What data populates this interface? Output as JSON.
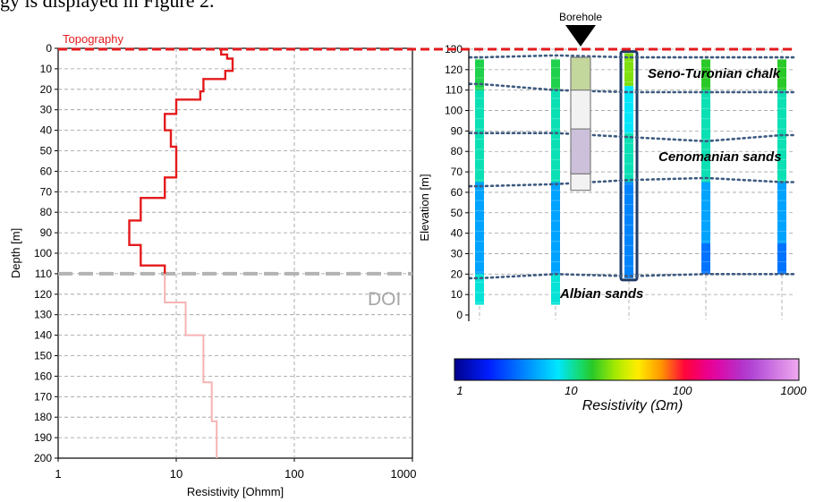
{
  "caption_fragment": "gy is displayed in Figure 2.",
  "colors": {
    "profile_line": "#e41a1c",
    "profile_below_doi": "#f6b3b3",
    "topography_line": "#e41a1c",
    "doi_line": "#b3b3b3",
    "borehole_outline": "#1f3a66",
    "layer_boundary": "#3d5a80"
  },
  "chart_data": [
    {
      "type": "line",
      "title": "",
      "xlabel": "Resistivity [Ohmm]",
      "ylabel": "Depth [m]",
      "xscale": "log",
      "xlim": [
        1,
        1000
      ],
      "ylim": [
        0,
        200
      ],
      "y_inverted": true,
      "grid": true,
      "x_ticks": [
        "1",
        "10",
        "100",
        "1000"
      ],
      "y_ticks": [
        "0",
        "10",
        "20",
        "30",
        "40",
        "50",
        "60",
        "70",
        "80",
        "90",
        "100",
        "110",
        "120",
        "130",
        "140",
        "150",
        "160",
        "170",
        "180",
        "190",
        "200"
      ],
      "annotations": [
        {
          "text": "Topography",
          "depth": 0
        },
        {
          "text": "DOI",
          "depth": 110
        }
      ],
      "series": [
        {
          "style": "step",
          "segment": "above DOI",
          "points": [
            [
              24,
              0
            ],
            [
              24,
              3
            ],
            [
              27,
              3
            ],
            [
              27,
              5
            ],
            [
              30,
              5
            ],
            [
              30,
              11
            ],
            [
              26,
              11
            ],
            [
              26,
              15
            ],
            [
              17,
              15
            ],
            [
              17,
              21
            ],
            [
              16,
              21
            ],
            [
              16,
              25
            ],
            [
              10,
              25
            ],
            [
              10,
              32
            ],
            [
              8,
              32
            ],
            [
              8,
              40
            ],
            [
              9,
              40
            ],
            [
              9,
              48
            ],
            [
              10,
              48
            ],
            [
              10,
              63
            ],
            [
              8,
              63
            ],
            [
              8,
              73
            ],
            [
              5,
              73
            ],
            [
              5,
              84
            ],
            [
              4,
              84
            ],
            [
              4,
              96
            ],
            [
              5,
              96
            ],
            [
              5,
              106
            ],
            [
              8,
              106
            ],
            [
              8,
              110
            ]
          ]
        },
        {
          "style": "step",
          "segment": "below DOI",
          "points": [
            [
              8,
              110
            ],
            [
              8,
              124
            ],
            [
              12,
              124
            ],
            [
              12,
              140
            ],
            [
              17,
              140
            ],
            [
              17,
              163
            ],
            [
              20,
              163
            ],
            [
              20,
              182
            ],
            [
              22,
              182
            ],
            [
              22,
              200
            ]
          ]
        }
      ]
    },
    {
      "type": "heatmap",
      "title": "",
      "xlabel": "",
      "ylabel": "Elevation [m]",
      "ylim": [
        0,
        130
      ],
      "colorbar": {
        "scale": "log",
        "range": [
          1,
          1000
        ],
        "ticks": [
          "1",
          "10",
          "100",
          "1000"
        ],
        "label": "Resistivity (Ωm)"
      },
      "y_ticks": [
        "0",
        "10",
        "20",
        "30",
        "40",
        "50",
        "60",
        "70",
        "80",
        "90",
        "100",
        "110",
        "120",
        "130"
      ],
      "borehole_label": "Borehole",
      "unit_labels": [
        "Seno-Turonian chalk",
        "Cenomanian sands",
        "Albian sands"
      ],
      "borehole_log": [
        {
          "from": 126,
          "to": 110,
          "color": "#c3d69b"
        },
        {
          "from": 110,
          "to": 91,
          "color": "#f2f2f2"
        },
        {
          "from": 91,
          "to": 69,
          "color": "#ccc0da"
        },
        {
          "from": 69,
          "to": 61,
          "color": "#f2f2f2"
        }
      ],
      "columns": [
        {
          "top": 125,
          "bottom": 5,
          "segments": [
            {
              "to": 110,
              "resistivity": 14
            },
            {
              "to": 65,
              "resistivity": 10
            },
            {
              "to": 20,
              "resistivity": 5
            },
            {
              "to": 5,
              "resistivity": 9
            }
          ]
        },
        {
          "top": 125,
          "bottom": 5,
          "segments": [
            {
              "to": 110,
              "resistivity": 14
            },
            {
              "to": 65,
              "resistivity": 10
            },
            {
              "to": 20,
              "resistivity": 5
            },
            {
              "to": 5,
              "resistivity": 9
            }
          ]
        },
        {
          "top": 128,
          "bottom": 18,
          "highlight": true,
          "segments": [
            {
              "to": 112,
              "resistivity": 22
            },
            {
              "to": 89,
              "resistivity": 8
            },
            {
              "to": 65,
              "resistivity": 10
            },
            {
              "to": 18,
              "resistivity": 4
            }
          ]
        },
        {
          "top": 125,
          "bottom": 20,
          "segments": [
            {
              "to": 110,
              "resistivity": 16
            },
            {
              "to": 65,
              "resistivity": 10
            },
            {
              "to": 35,
              "resistivity": 5
            },
            {
              "to": 20,
              "resistivity": 3.6
            }
          ]
        },
        {
          "top": 125,
          "bottom": 20,
          "segments": [
            {
              "to": 110,
              "resistivity": 16
            },
            {
              "to": 65,
              "resistivity": 10
            },
            {
              "to": 35,
              "resistivity": 5
            },
            {
              "to": 20,
              "resistivity": 3.6
            }
          ]
        }
      ],
      "boundaries": [
        [
          [
            0,
            126
          ],
          [
            1,
            127
          ],
          [
            2,
            126
          ],
          [
            3,
            126
          ],
          [
            4,
            126
          ]
        ],
        [
          [
            0,
            113
          ],
          [
            1,
            110
          ],
          [
            2,
            109
          ],
          [
            3,
            109
          ],
          [
            4,
            109
          ]
        ],
        [
          [
            0,
            89
          ],
          [
            1,
            89
          ],
          [
            2,
            87
          ],
          [
            3,
            85
          ],
          [
            4,
            88
          ]
        ],
        [
          [
            0,
            63
          ],
          [
            1,
            64
          ],
          [
            2,
            66
          ],
          [
            3,
            67
          ],
          [
            4,
            65
          ]
        ],
        [
          [
            0,
            18
          ],
          [
            1,
            20
          ],
          [
            2,
            19
          ],
          [
            3,
            20
          ],
          [
            4,
            20
          ]
        ]
      ]
    }
  ]
}
